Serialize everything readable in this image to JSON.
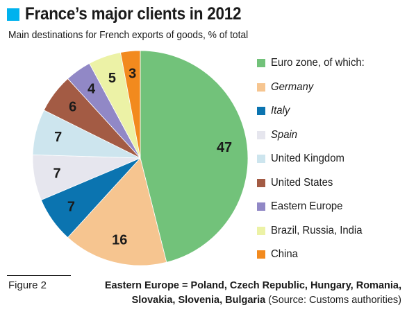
{
  "header": {
    "title": "France’s major clients in 2012",
    "subtitle": "Main destinations for French exports of goods, % of total"
  },
  "chart_data": {
    "type": "pie",
    "title": "France’s major clients in 2012",
    "subtitle": "Main destinations for French exports of goods, % of total",
    "slices": [
      {
        "label": "Euro zone, of which:",
        "value": 47,
        "color": "#72c27a",
        "italic": false
      },
      {
        "label": "Germany",
        "value": 16,
        "color": "#f6c590",
        "italic": true
      },
      {
        "label": "Italy",
        "value": 7,
        "color": "#0b74b0",
        "italic": true
      },
      {
        "label": "Spain",
        "value": 7,
        "color": "#e6e6ee",
        "italic": true
      },
      {
        "label": "United Kingdom",
        "value": 7,
        "color": "#cde5ee",
        "italic": false
      },
      {
        "label": "United States",
        "value": 6,
        "color": "#a35b44",
        "italic": false
      },
      {
        "label": "Eastern Europe",
        "value": 4,
        "color": "#9188c6",
        "italic": false
      },
      {
        "label": "Brazil, Russia, India",
        "value": 5,
        "color": "#ecf2a6",
        "italic": false
      },
      {
        "label": "China",
        "value": 3,
        "color": "#f28a1e",
        "italic": false
      }
    ],
    "start": "top",
    "direction": "clockwise",
    "legend_position": "right"
  },
  "footer": {
    "figure_label": "Figure 2",
    "note_bold_line1": "Eastern Europe = Poland, Czech Republic, Hungary, Romania,",
    "note_bold_line2": "Slovakia, Slovenia, Bulgaria",
    "note_source": " (Source: Customs authorities)"
  }
}
